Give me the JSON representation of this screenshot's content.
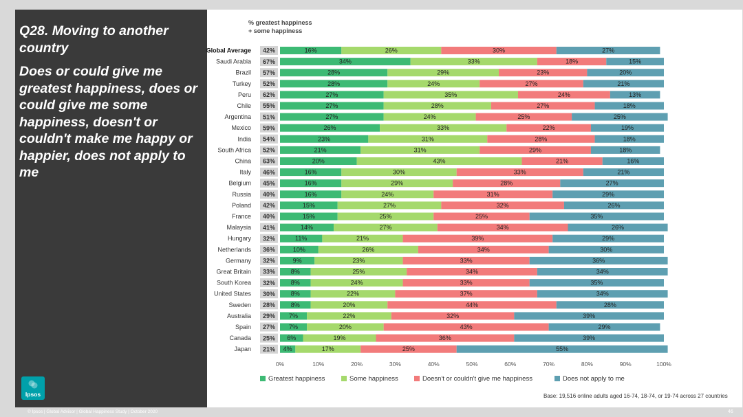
{
  "slide": {
    "title": "Q28. Moving to another country",
    "description": "Does or could give me greatest happiness, does or could give me some happiness, doesn't or couldn't make me happy or happier, does not apply to me",
    "column_header": "% greatest happiness + some happiness",
    "base_note": "Base: 19,516 online adults aged 16-74, 18-74, or 19-74 across 27 countries",
    "footer": "© Ipsos | Global Advisor | Global Happiness Study | October 2020",
    "page_number": "46",
    "logo_text": "Ipsos"
  },
  "colors": {
    "greatest": "#3dba74",
    "some": "#a5d96c",
    "doesnt": "#f27b7b",
    "not_apply": "#5e9fb1",
    "pct_box": "#d4d4d4",
    "left_panel": "#3a3a3a",
    "logo": "#00a0aa"
  },
  "chart_data": {
    "type": "bar",
    "orientation": "horizontal",
    "stacked": true,
    "xlim": [
      0,
      100
    ],
    "x_ticks": [
      "0%",
      "10%",
      "20%",
      "30%",
      "40%",
      "50%",
      "60%",
      "70%",
      "80%",
      "90%",
      "100%"
    ],
    "grid": false,
    "legend_position": "bottom",
    "categories": [
      "Global Average",
      "Saudi Arabia",
      "Brazil",
      "Turkey",
      "Peru",
      "Chile",
      "Argentina",
      "Mexico",
      "India",
      "South Africa",
      "China",
      "Italy",
      "Belgium",
      "Russia",
      "Poland",
      "France",
      "Malaysia",
      "Hungary",
      "Netherlands",
      "Germany",
      "Great Britain",
      "South Korea",
      "United States",
      "Sweden",
      "Australia",
      "Spain",
      "Canada",
      "Japan"
    ],
    "net_labels": [
      "42%",
      "67%",
      "57%",
      "52%",
      "62%",
      "55%",
      "51%",
      "59%",
      "54%",
      "52%",
      "63%",
      "46%",
      "45%",
      "40%",
      "42%",
      "40%",
      "41%",
      "32%",
      "36%",
      "32%",
      "33%",
      "32%",
      "30%",
      "28%",
      "29%",
      "27%",
      "25%",
      "21%"
    ],
    "series": [
      {
        "name": "Greatest happiness",
        "color_key": "greatest",
        "values": [
          16,
          34,
          28,
          28,
          27,
          27,
          27,
          26,
          23,
          21,
          20,
          16,
          16,
          16,
          15,
          15,
          14,
          11,
          10,
          9,
          8,
          8,
          8,
          8,
          7,
          7,
          6,
          4
        ]
      },
      {
        "name": "Some happiness",
        "color_key": "some",
        "values": [
          26,
          33,
          29,
          24,
          35,
          28,
          24,
          33,
          31,
          31,
          43,
          30,
          29,
          24,
          27,
          25,
          27,
          21,
          26,
          23,
          25,
          24,
          22,
          20,
          22,
          20,
          19,
          17
        ]
      },
      {
        "name": "Doesn't or couldn't give me happiness",
        "color_key": "doesnt",
        "values": [
          30,
          18,
          23,
          27,
          24,
          27,
          25,
          22,
          28,
          29,
          21,
          33,
          28,
          31,
          32,
          25,
          34,
          39,
          34,
          33,
          34,
          33,
          37,
          44,
          32,
          43,
          36,
          25
        ]
      },
      {
        "name": "Does not apply to me",
        "color_key": "not_apply",
        "values": [
          27,
          15,
          20,
          21,
          13,
          18,
          25,
          19,
          18,
          18,
          16,
          21,
          27,
          29,
          26,
          35,
          26,
          29,
          30,
          36,
          34,
          35,
          34,
          28,
          39,
          29,
          39,
          55
        ]
      }
    ]
  }
}
